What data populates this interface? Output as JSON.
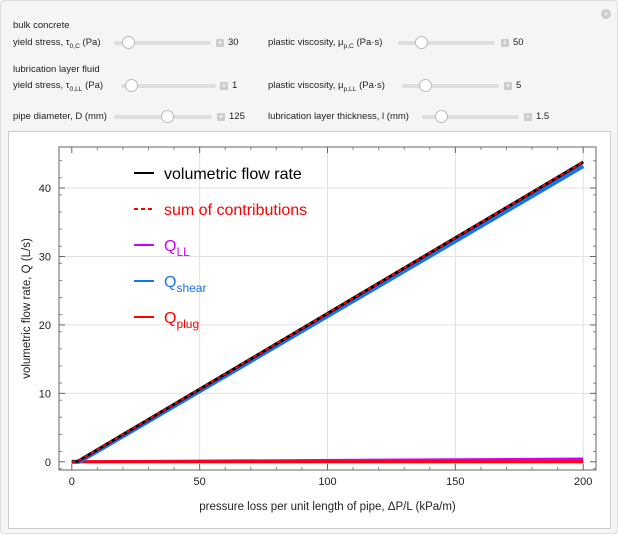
{
  "controls": {
    "bulk_heading": "bulk concrete",
    "ll_heading": "lubrication layer fluid",
    "yield_c": {
      "label": "yield stress, τ",
      "sub": "0,C",
      "unit": " (Pa)",
      "value": "30",
      "fraction": 0.1
    },
    "visc_c": {
      "label": "plastic viscosity, μ",
      "sub": "p,C",
      "unit": " (Pa·s)",
      "value": "50",
      "fraction": 0.2
    },
    "yield_ll": {
      "label": "yield stress, τ",
      "sub": "0,LL",
      "unit": " (Pa)",
      "value": "1",
      "fraction": 0.05
    },
    "visc_ll": {
      "label": "plastic viscosity, μ",
      "sub": "p,LL",
      "unit": " (Pa·s)",
      "value": "5",
      "fraction": 0.2
    },
    "diameter": {
      "label": "pipe diameter, D (mm)",
      "value": "125",
      "fraction": 0.55
    },
    "thickness": {
      "label": "lubrication layer thickness, l (mm)",
      "value": "1.5",
      "fraction": 0.15
    }
  },
  "chart_data": {
    "type": "line",
    "xlabel": "pressure loss per unit length of pipe, ΔP/L (kPa/m)",
    "ylabel": "volumetric flow rate, Q (L/s)",
    "xlim": [
      -5,
      205
    ],
    "ylim": [
      -1.2,
      46
    ],
    "xticks": [
      "0",
      "50",
      "100",
      "150",
      "200"
    ],
    "yticks": [
      "0",
      "10",
      "20",
      "30",
      "40"
    ],
    "grid": true,
    "legend_placement": "top-left",
    "series": [
      {
        "name": "volumetric flow rate",
        "color": "#000000",
        "style": "solid",
        "x": [
          0,
          2,
          200
        ],
        "y": [
          0,
          0,
          43.8
        ]
      },
      {
        "name": "sum of contributions",
        "color": "#ff0000",
        "style": "dashed",
        "x": [
          0,
          2,
          200
        ],
        "y": [
          0,
          0,
          43.8
        ]
      },
      {
        "name": "Q",
        "sub": "LL",
        "color": "#cc00ff",
        "style": "solid",
        "x": [
          0,
          200
        ],
        "y": [
          0,
          0.4
        ]
      },
      {
        "name": "Q",
        "sub": "shear",
        "color": "#1a73e8",
        "style": "solid",
        "x": [
          0,
          3,
          200
        ],
        "y": [
          0,
          0,
          43.2
        ]
      },
      {
        "name": "Q",
        "sub": "plug",
        "color": "#ff0000",
        "style": "solid",
        "x": [
          0,
          200
        ],
        "y": [
          0,
          0
        ]
      }
    ]
  }
}
